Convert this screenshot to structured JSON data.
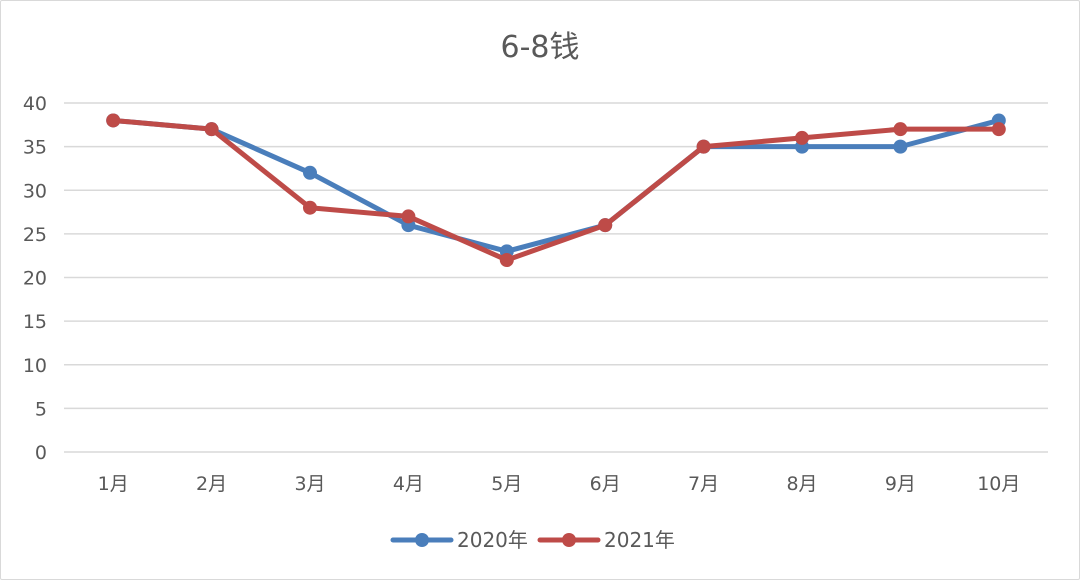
{
  "chart_data": {
    "type": "line",
    "title": "6-8钱",
    "categories": [
      "1月",
      "2月",
      "3月",
      "4月",
      "5月",
      "6月",
      "7月",
      "8月",
      "9月",
      "10月"
    ],
    "series": [
      {
        "name": "2020年",
        "color": "#4a7ebb",
        "values": [
          38,
          37,
          32,
          26,
          23,
          26,
          35,
          35,
          35,
          38
        ]
      },
      {
        "name": "2021年",
        "color": "#be4b48",
        "values": [
          38,
          37,
          28,
          27,
          22,
          26,
          35,
          36,
          37,
          37
        ]
      }
    ],
    "ylim": [
      0,
      40
    ],
    "yticks": [
      0,
      5,
      10,
      15,
      20,
      25,
      30,
      35,
      40
    ],
    "grid": true,
    "legend_position": "bottom"
  }
}
